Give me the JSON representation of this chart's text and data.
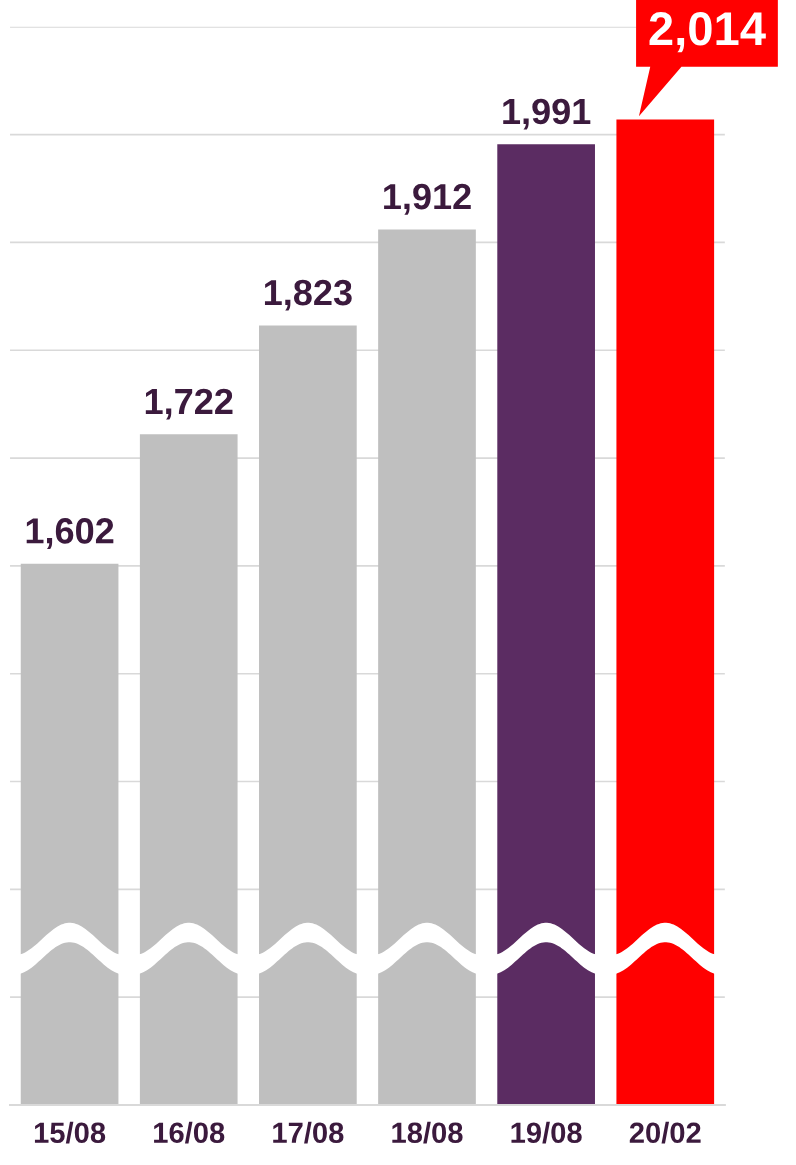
{
  "chart_data": {
    "type": "bar",
    "categories": [
      "15/08",
      "16/08",
      "17/08",
      "18/08",
      "19/08",
      "20/02"
    ],
    "values": [
      1602,
      1722,
      1823,
      1912,
      1991,
      2014
    ],
    "colors": [
      "#bfbfbf",
      "#bfbfbf",
      "#bfbfbf",
      "#bfbfbf",
      "#5b2c62",
      "#ff0000"
    ],
    "value_labels": [
      "1,602",
      "1,722",
      "1,823",
      "1,912",
      "1,991",
      "2,014"
    ],
    "ylim": [
      1100,
      2100
    ],
    "yticks": [
      {
        "value": 1100,
        "label": null
      },
      {
        "value": 1200,
        "label": null
      },
      {
        "value": 1300,
        "label": null
      },
      {
        "value": 1400,
        "label": null
      },
      {
        "value": 1500,
        "label": null
      },
      {
        "value": 1600,
        "label": null
      },
      {
        "value": 1700,
        "label": null
      },
      {
        "value": 1800,
        "label": null
      },
      {
        "value": 1900,
        "label": null
      },
      {
        "value": 2000,
        "label": null
      },
      {
        "value": 2100,
        "label": null
      }
    ],
    "grid": "y",
    "tick_labels": "x",
    "legend": false
  }
}
